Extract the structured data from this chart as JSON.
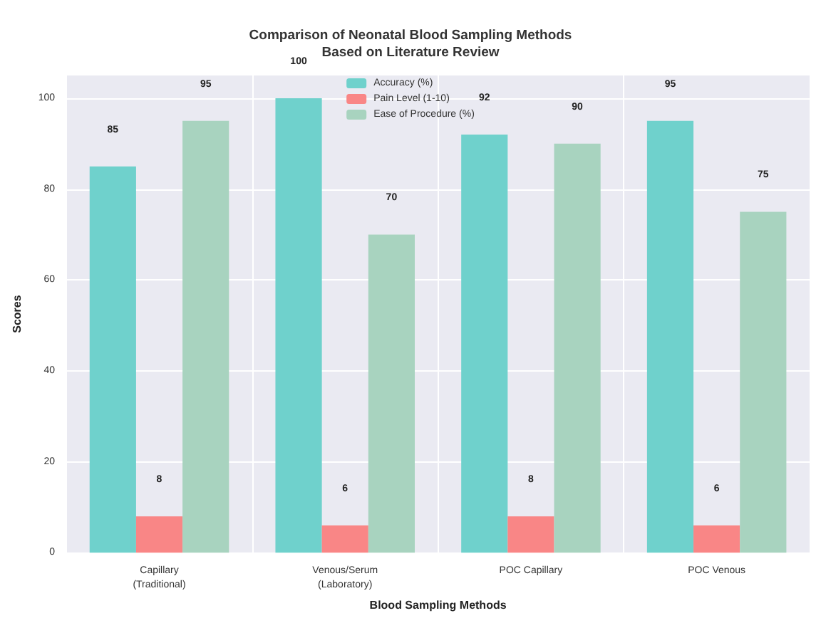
{
  "chart_data": {
    "type": "bar",
    "title": "Comparison of Neonatal Blood Sampling Methods\nBased on Literature Review",
    "xlabel": "Blood Sampling Methods",
    "ylabel": "Scores",
    "categories": [
      "Capillary\n(Traditional)",
      "Venous/Serum\n(Laboratory)",
      "POC Capillary",
      "POC Venous"
    ],
    "series": [
      {
        "name": "Accuracy (%)",
        "color": "#6fd1cc",
        "values": [
          85,
          100,
          92,
          95
        ]
      },
      {
        "name": "Pain Level (1-10)",
        "color": "#f98686",
        "values": [
          8,
          6,
          8,
          6
        ]
      },
      {
        "name": "Ease of Procedure (%)",
        "color": "#a8d3bf",
        "values": [
          95,
          70,
          90,
          75
        ]
      }
    ],
    "ylim": [
      0,
      105
    ],
    "yticks": [
      0,
      20,
      40,
      60,
      80,
      100
    ],
    "grid": true,
    "legend": "top",
    "data_labels": true
  }
}
